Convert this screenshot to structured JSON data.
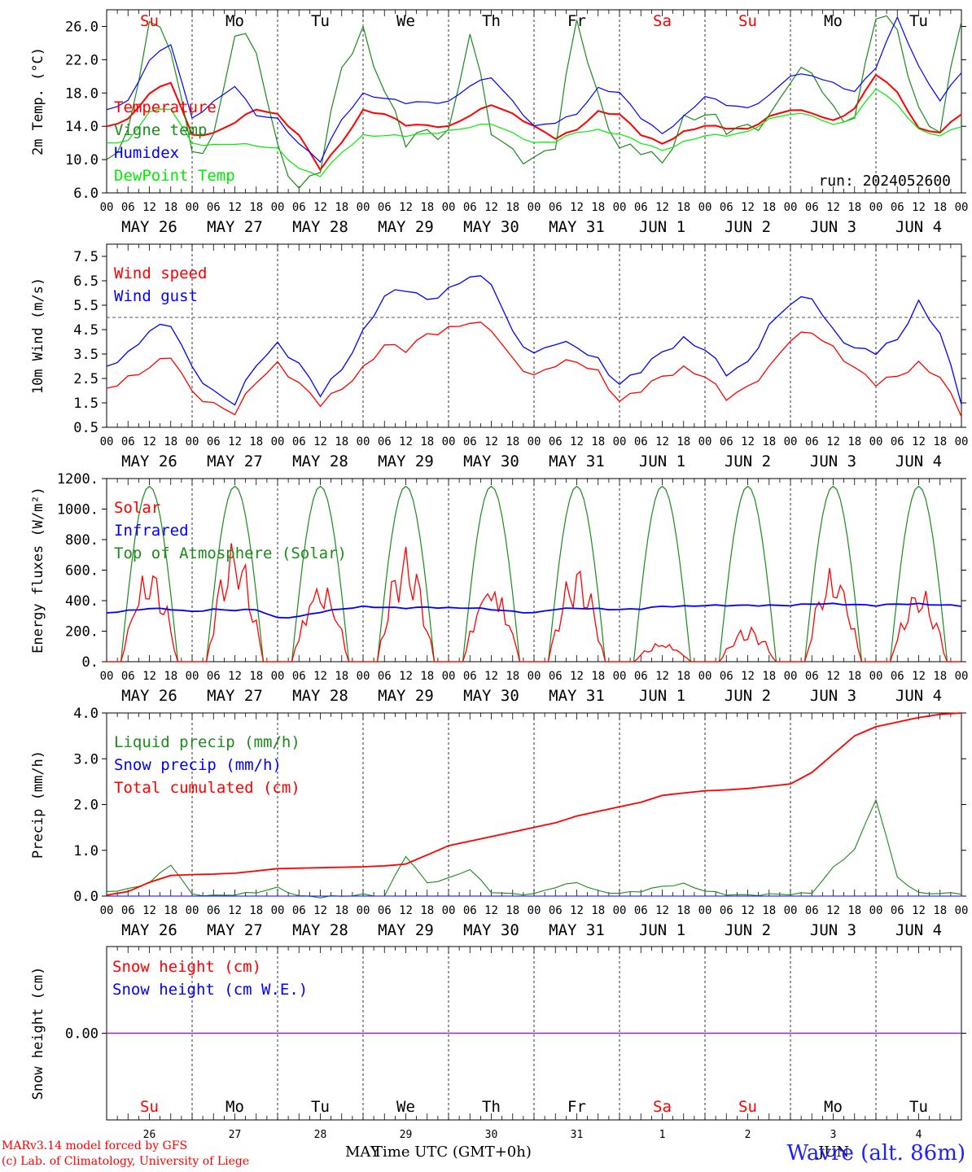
{
  "chart_data": [
    {
      "type": "line",
      "ylabel": "2m Temp. (°C)",
      "ylim": [
        6,
        28
      ],
      "yticks": [
        "26.0",
        "22.0",
        "18.0",
        "14.0",
        "10.0",
        "6.0"
      ],
      "x_hours": [
        0,
        6,
        12,
        18,
        24,
        30,
        36,
        42,
        48,
        54,
        60,
        66,
        72,
        78,
        84,
        90,
        96,
        102,
        108,
        114,
        120,
        126,
        132,
        138,
        144,
        150,
        156,
        162,
        168,
        174,
        180,
        186,
        192,
        198,
        204,
        210,
        216,
        222,
        228,
        234,
        240
      ],
      "run_label": "run: 2024052600",
      "legend": [
        "Temperature",
        "Vigne temp",
        "Humidex",
        "DewPoint Temp"
      ],
      "series": [
        {
          "name": "Temperature",
          "color": "#ff0000",
          "values": [
            14,
            14.8,
            18,
            19.4,
            13,
            13.2,
            14.6,
            16.2,
            15.5,
            13,
            9,
            12.2,
            16,
            15.6,
            14.3,
            14.2,
            14,
            15.4,
            16.7,
            15.5,
            14,
            12.6,
            13.6,
            15.7,
            15.4,
            13,
            11.8,
            13.2,
            14,
            13.7,
            13.5,
            15,
            15.9,
            15.5,
            14.5,
            16,
            20.2,
            18,
            13.6,
            13.2,
            15.5
          ]
        },
        {
          "name": "Vigne temp",
          "color": "#1b8a1b",
          "values": [
            10,
            13,
            27,
            24,
            11,
            13,
            26,
            24,
            12,
            7,
            10,
            22,
            26,
            19,
            13,
            14,
            13.5,
            26,
            14,
            11,
            10,
            12,
            27,
            17,
            11,
            11,
            9,
            14,
            15,
            13,
            13,
            14,
            19,
            20,
            15,
            14,
            27,
            25,
            15,
            13,
            27
          ]
        },
        {
          "name": "Humidex",
          "color": "#0000ff",
          "values": [
            16,
            17,
            22,
            24,
            15,
            17,
            19,
            15.5,
            15,
            12,
            10,
            15,
            18,
            17.5,
            17,
            17,
            17,
            19,
            20,
            17,
            14,
            14.5,
            15.5,
            18.5,
            18,
            15,
            13,
            15,
            17.5,
            16.5,
            16,
            17.5,
            20,
            20,
            19,
            18,
            21,
            27,
            21,
            17,
            20.5
          ]
        },
        {
          "name": "DewPoint Temp",
          "color": "#00ee00",
          "values": [
            12,
            12.2,
            15.8,
            16.2,
            12,
            11.8,
            12,
            11.8,
            11.4,
            9,
            8.2,
            11,
            13,
            13,
            13,
            13.2,
            13.5,
            14,
            14.4,
            13.2,
            12,
            12.2,
            13.3,
            13.5,
            13,
            12,
            11,
            12,
            12.8,
            12.8,
            13.2,
            14.7,
            15.4,
            15.2,
            14,
            15,
            18.5,
            16.5,
            13.5,
            12.8,
            14
          ]
        }
      ]
    },
    {
      "type": "line",
      "ylabel": "10m Wind (m/s)",
      "ylim": [
        0.5,
        8
      ],
      "yticks": [
        "7.5",
        "6.5",
        "5.5",
        "4.5",
        "3.5",
        "2.5",
        "1.5",
        "0.5"
      ],
      "reference_line": 5,
      "legend": [
        "Wind speed",
        "Wind gust"
      ],
      "series": [
        {
          "name": "Wind speed",
          "color": "#ff0000",
          "values": [
            2.1,
            2.5,
            3,
            3.5,
            2,
            1.5,
            1.2,
            2.5,
            3.2,
            2.4,
            1.6,
            2.2,
            3,
            4,
            3.8,
            4.4,
            4.6,
            4.9,
            4.6,
            3.3,
            2.6,
            3.1,
            3.2,
            2.7,
            1.5,
            2,
            2.5,
            2.8,
            2.5,
            1.6,
            2,
            2.8,
            4,
            4.3,
            3.6,
            2.8,
            2.2,
            2.5,
            3,
            2.5,
            1
          ]
        },
        {
          "name": "Wind gust",
          "color": "#0000ff",
          "values": [
            3,
            3.5,
            4.5,
            4.8,
            3,
            2,
            1.6,
            3.2,
            4,
            3.2,
            2,
            3,
            4.5,
            6,
            6.3,
            5.8,
            6.2,
            6.8,
            6.5,
            4.4,
            3.5,
            4,
            3.8,
            3.2,
            2.2,
            2.8,
            3.5,
            4,
            3.6,
            2.6,
            3,
            4.5,
            5.5,
            5.7,
            4.3,
            3.6,
            3.5,
            4,
            5.5,
            4.3,
            1.5
          ]
        }
      ]
    },
    {
      "type": "line",
      "ylabel": "Energy fluxes (W/m²)",
      "ylim": [
        0,
        1200
      ],
      "yticks": [
        "1200.",
        "1000.",
        "800.",
        "600.",
        "400.",
        "200.",
        "0."
      ],
      "legend": [
        "Solar",
        "Infrared",
        "Top of Atmosphere (Solar)"
      ],
      "series": [
        {
          "name": "Solar",
          "color": "#ff0000",
          "peaks": [
            680,
            820,
            610,
            760,
            620,
            640,
            150,
            240,
            680,
            530
          ]
        },
        {
          "name": "Infrared",
          "color": "#0000ff",
          "baseline": 340,
          "values": [
            320,
            335,
            350,
            345,
            330,
            345,
            340,
            345,
            290,
            300,
            330,
            350,
            365,
            360,
            355,
            360,
            355,
            355,
            345,
            330,
            320,
            345,
            350,
            345,
            340,
            345,
            360,
            360,
            365,
            365,
            365,
            365,
            365,
            375,
            375,
            370,
            365,
            375,
            375,
            370,
            365
          ]
        },
        {
          "name": "Top of Atmosphere (Solar)",
          "color": "#1b8a1b",
          "peak": 1150
        }
      ]
    },
    {
      "type": "line",
      "ylabel": "Precip (mm/h)",
      "ylim": [
        0,
        4
      ],
      "yticks": [
        "4.0",
        "3.0",
        "2.0",
        "1.0",
        "0.0"
      ],
      "legend": [
        "Liquid precip (mm/h)",
        "Snow precip (mm/h)",
        "Total cumulated (cm)"
      ],
      "series": [
        {
          "name": "Liquid precip (mm/h)",
          "color": "#1b8a1b",
          "values": [
            0.1,
            0.15,
            0.3,
            0.7,
            0.05,
            0.02,
            0.05,
            0.1,
            0.2,
            0.02,
            0,
            0.02,
            0.05,
            0.02,
            0.9,
            0.3,
            0.4,
            0.6,
            0.1,
            0.05,
            0.05,
            0.2,
            0.3,
            0.1,
            0.05,
            0.1,
            0.2,
            0.25,
            0.1,
            0.02,
            0,
            0.02,
            0.02,
            0.05,
            0.6,
            1,
            2.1,
            0.4,
            0.05,
            0.05,
            0.05
          ]
        },
        {
          "name": "Snow precip (mm/h)",
          "color": "#0000ff",
          "values": [
            0,
            0,
            0,
            0,
            0,
            0,
            0,
            0,
            0,
            0,
            0,
            0,
            0,
            0,
            0,
            0,
            0,
            0,
            0,
            0,
            0,
            0,
            0,
            0,
            0,
            0,
            0,
            0,
            0,
            0,
            0,
            0,
            0,
            0,
            0,
            0,
            0,
            0,
            0,
            0,
            0
          ]
        },
        {
          "name": "Total cumulated (cm)",
          "color": "#ff0000",
          "values": [
            0.02,
            0.1,
            0.3,
            0.45,
            0.47,
            0.48,
            0.5,
            0.55,
            0.6,
            0.61,
            0.62,
            0.63,
            0.64,
            0.66,
            0.7,
            0.9,
            1.1,
            1.2,
            1.3,
            1.4,
            1.5,
            1.6,
            1.75,
            1.85,
            1.95,
            2.05,
            2.2,
            2.25,
            2.3,
            2.32,
            2.35,
            2.4,
            2.45,
            2.7,
            3.1,
            3.5,
            3.7,
            3.8,
            3.9,
            3.97,
            4
          ]
        }
      ]
    },
    {
      "type": "line",
      "ylabel": "Snow height (cm)",
      "yticks": [
        "0.00"
      ],
      "legend": [
        "Snow height (cm)",
        "Snow height (cm W.E.)"
      ],
      "series": [
        {
          "name": "Snow height (cm)",
          "color": "#ff0000",
          "values": [
            0,
            0
          ]
        },
        {
          "name": "Snow height (cm W.E.)",
          "color": "#0000ff",
          "values": [
            0,
            0
          ]
        }
      ]
    }
  ],
  "days": [
    {
      "abbr": "Su",
      "color": "#ff0000",
      "date": "MAY 26",
      "num": "26"
    },
    {
      "abbr": "Mo",
      "color": "#000000",
      "date": "MAY 27",
      "num": "27"
    },
    {
      "abbr": "Tu",
      "color": "#000000",
      "date": "MAY 28",
      "num": "28"
    },
    {
      "abbr": "We",
      "color": "#000000",
      "date": "MAY 29",
      "num": "29"
    },
    {
      "abbr": "Th",
      "color": "#000000",
      "date": "MAY 30",
      "num": "30"
    },
    {
      "abbr": "Fr",
      "color": "#000000",
      "date": "MAY 31",
      "num": "31"
    },
    {
      "abbr": "Sa",
      "color": "#ff0000",
      "date": "JUN  1",
      "num": "1"
    },
    {
      "abbr": "Su",
      "color": "#ff0000",
      "date": "JUN  2",
      "num": "2"
    },
    {
      "abbr": "Mo",
      "color": "#000000",
      "date": "JUN  3",
      "num": "3"
    },
    {
      "abbr": "Tu",
      "color": "#000000",
      "date": "JUN  4",
      "num": "4"
    }
  ],
  "hour_ticks": [
    "00",
    "06",
    "12",
    "18"
  ],
  "footer": {
    "credit1": "MARv3.14 model forced by GFS",
    "credit2": "(c) Lab. of Climatology, University of Liege",
    "xaxis_label": "Time UTC (GMT+0h)",
    "month1": "MAY",
    "month2": "JUN",
    "station": "Wavre (alt. 86m)"
  }
}
